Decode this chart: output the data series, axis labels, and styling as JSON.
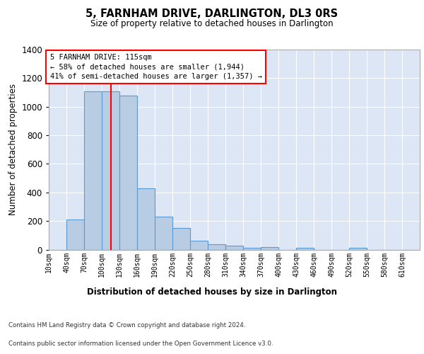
{
  "title": "5, FARNHAM DRIVE, DARLINGTON, DL3 0RS",
  "subtitle": "Size of property relative to detached houses in Darlington",
  "xlabel": "Distribution of detached houses by size in Darlington",
  "ylabel": "Number of detached properties",
  "footer_line1": "Contains HM Land Registry data © Crown copyright and database right 2024.",
  "footer_line2": "Contains public sector information licensed under the Open Government Licence v3.0.",
  "annotation_line1": "5 FARNHAM DRIVE: 115sqm",
  "annotation_line2": "← 58% of detached houses are smaller (1,944)",
  "annotation_line3": "41% of semi-detached houses are larger (1,357) →",
  "bar_color": "#b8cce4",
  "bar_edge_color": "#5b9bd5",
  "red_line_x": 115,
  "categories": [
    "10sqm",
    "40sqm",
    "70sqm",
    "100sqm",
    "130sqm",
    "160sqm",
    "190sqm",
    "220sqm",
    "250sqm",
    "280sqm",
    "310sqm",
    "340sqm",
    "370sqm",
    "400sqm",
    "430sqm",
    "460sqm",
    "490sqm",
    "520sqm",
    "550sqm",
    "580sqm",
    "610sqm"
  ],
  "values": [
    0,
    210,
    1110,
    1110,
    1080,
    430,
    230,
    150,
    60,
    38,
    25,
    12,
    15,
    0,
    12,
    0,
    0,
    12,
    0,
    0,
    0
  ],
  "ylim": [
    0,
    1400
  ],
  "plot_background": "#dce6f5",
  "grid_color": "#ffffff",
  "bin_width": 30
}
